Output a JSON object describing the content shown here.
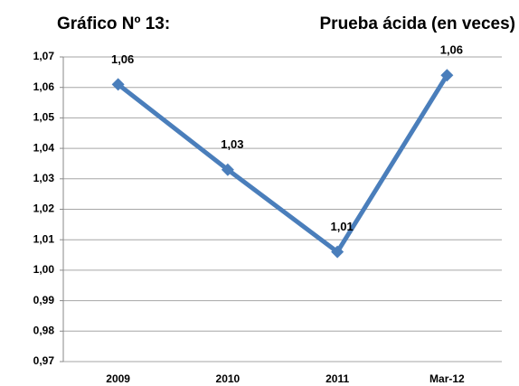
{
  "chart_data": {
    "type": "line",
    "title": "Gráfico Nº 13:",
    "subtitle": "Prueba ácida (en veces)",
    "categories": [
      "2009",
      "2010",
      "2011",
      "Mar-12"
    ],
    "series": [
      {
        "name": "Prueba ácida",
        "color": "#4a7ebb",
        "values": [
          1.061,
          1.033,
          1.006,
          1.064
        ],
        "value_labels": [
          "1,06",
          "1,03",
          "1,01",
          "1,06"
        ]
      }
    ],
    "ylim": [
      0.97,
      1.07
    ],
    "yticks": [
      {
        "value": 0.97,
        "label": "0,97"
      },
      {
        "value": 0.98,
        "label": "0,98"
      },
      {
        "value": 0.99,
        "label": "0,99"
      },
      {
        "value": 1.0,
        "label": "1,00"
      },
      {
        "value": 1.01,
        "label": "1,01"
      },
      {
        "value": 1.02,
        "label": "1,02"
      },
      {
        "value": 1.03,
        "label": "1,03"
      },
      {
        "value": 1.04,
        "label": "1,04"
      },
      {
        "value": 1.05,
        "label": "1,05"
      },
      {
        "value": 1.06,
        "label": "1,06"
      },
      {
        "value": 1.07,
        "label": "1,07"
      }
    ],
    "grid": true
  }
}
